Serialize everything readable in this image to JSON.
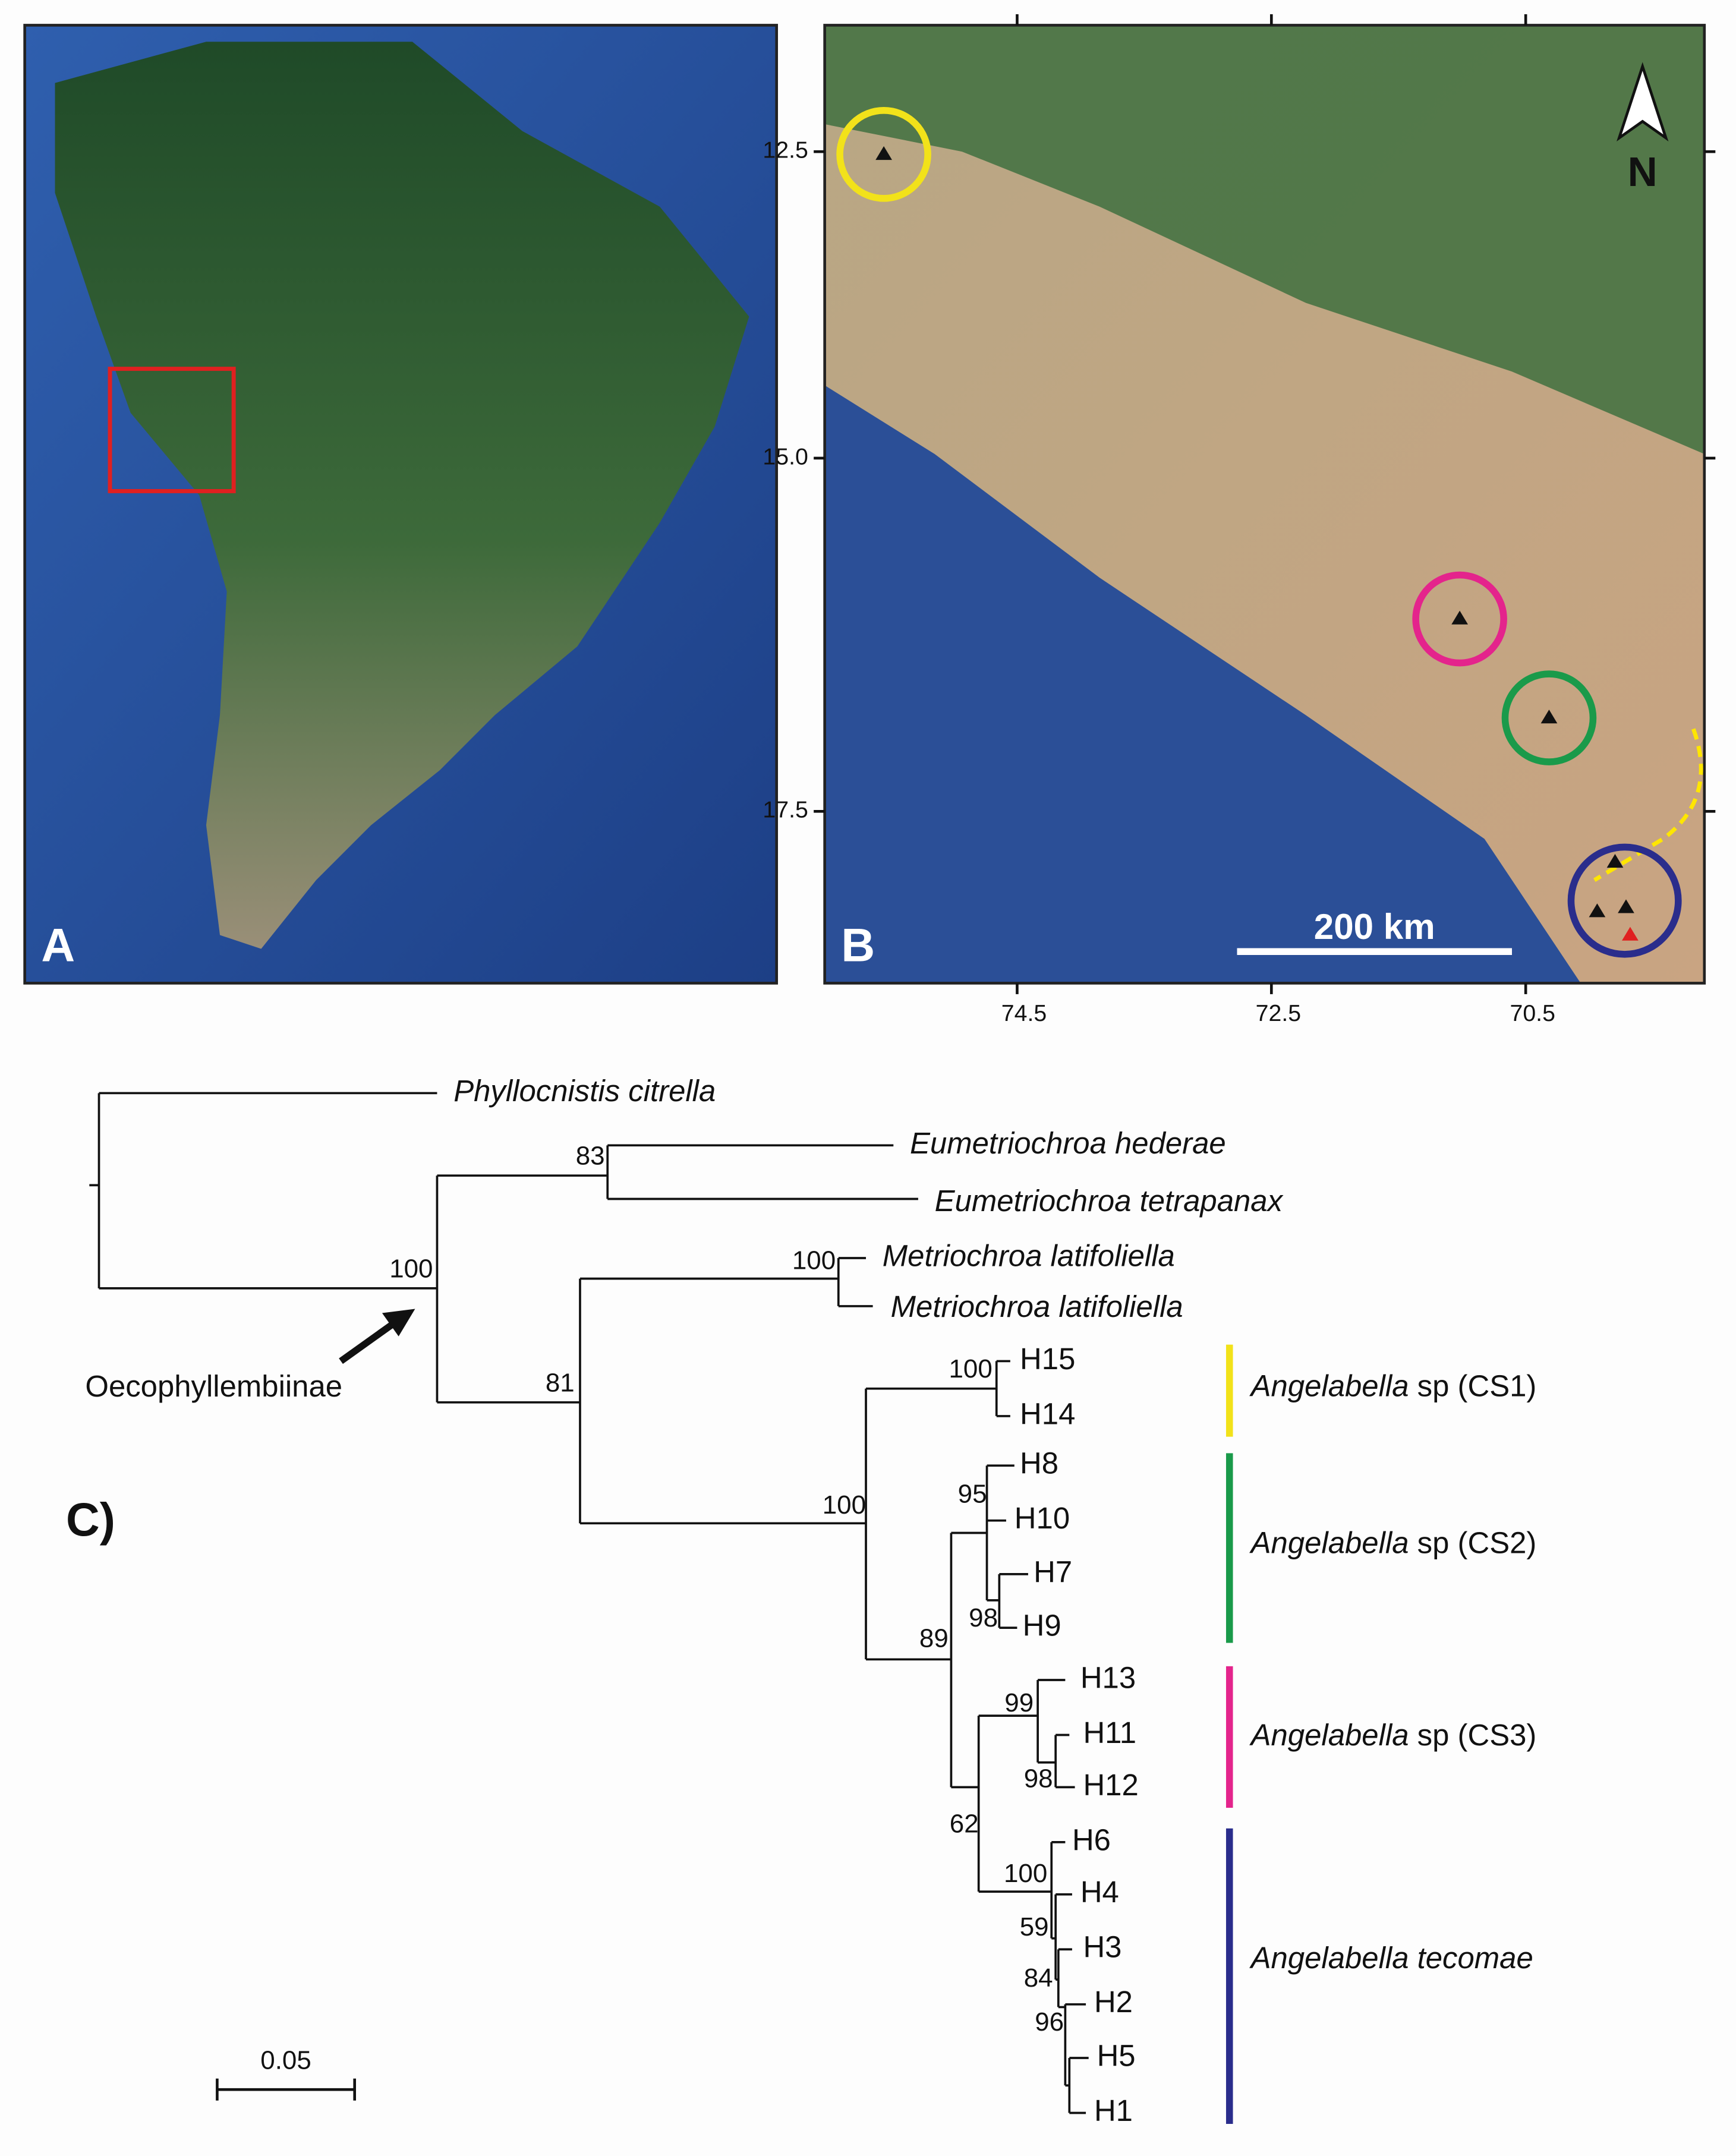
{
  "panels": {
    "a": {
      "label": "A"
    },
    "b": {
      "label": "B",
      "yticks": [
        "12.5",
        "15.0",
        "17.5"
      ],
      "xticks": [
        "74.5",
        "72.5",
        "70.5"
      ],
      "scale": "200 km",
      "north": "N"
    },
    "c": {
      "label": "C)"
    }
  },
  "tree": {
    "taxa": [
      "Phyllocnistis citrella",
      "Eumetriochroa hederae",
      "Eumetriochroa tetrapanax",
      "Metriochroa latifoliella",
      "Metriochroa latifoliella"
    ],
    "tips": [
      "H15",
      "H14",
      "H8",
      "H10",
      "H7",
      "H9",
      "H13",
      "H11",
      "H12",
      "H6",
      "H4",
      "H3",
      "H2",
      "H5",
      "H1"
    ],
    "supports": [
      "100",
      "83",
      "81",
      "100",
      "100",
      "100",
      "95",
      "98",
      "89",
      "62",
      "99",
      "98",
      "100",
      "59",
      "84",
      "96"
    ],
    "subfamily": "Oecophyllembiinae",
    "clades": [
      {
        "genus": "Angelabella",
        "rest": "sp (CS1)"
      },
      {
        "genus": "Angelabella",
        "rest": "sp (CS2)"
      },
      {
        "genus": "Angelabella",
        "rest": "sp (CS3)"
      },
      {
        "genus": "Angelabella tecomae"
      }
    ],
    "scale": "0.05"
  }
}
